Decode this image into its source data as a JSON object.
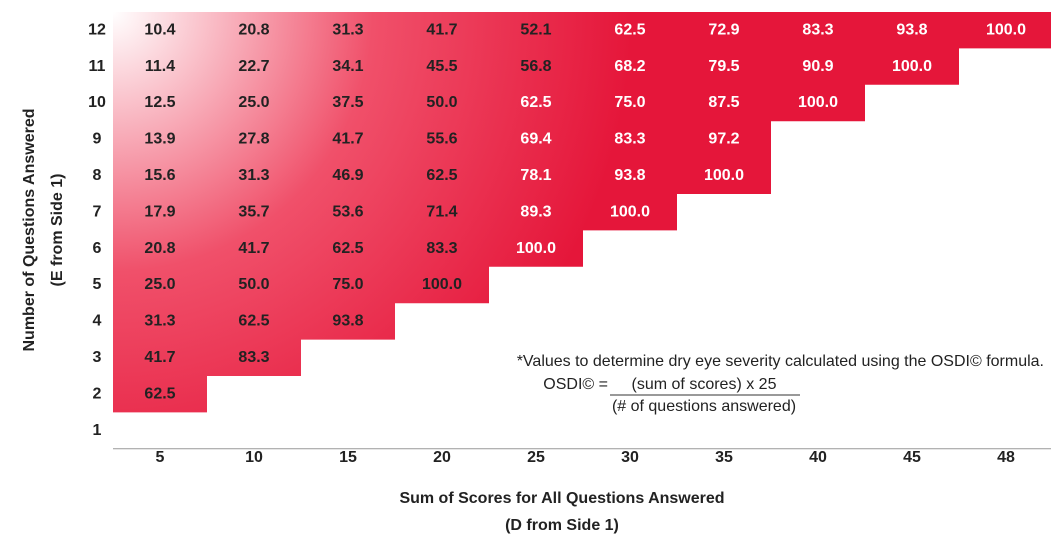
{
  "table": {
    "y_axis_title": [
      "Number of Questions Answered",
      "(E from Side 1)"
    ],
    "x_axis_title": [
      "Sum of Scores for All Questions Answered",
      "(D from Side 1)"
    ],
    "columns": [
      "5",
      "10",
      "15",
      "20",
      "25",
      "30",
      "35",
      "40",
      "45",
      "48"
    ],
    "rows": [
      {
        "label": "12",
        "values": [
          "10.4",
          "20.8",
          "31.3",
          "41.7",
          "52.1",
          "62.5",
          "72.9",
          "83.3",
          "93.8",
          "100.0"
        ]
      },
      {
        "label": "11",
        "values": [
          "11.4",
          "22.7",
          "34.1",
          "45.5",
          "56.8",
          "68.2",
          "79.5",
          "90.9",
          "100.0"
        ]
      },
      {
        "label": "10",
        "values": [
          "12.5",
          "25.0",
          "37.5",
          "50.0",
          "62.5",
          "75.0",
          "87.5",
          "100.0"
        ]
      },
      {
        "label": "9",
        "values": [
          "13.9",
          "27.8",
          "41.7",
          "55.6",
          "69.4",
          "83.3",
          "97.2"
        ]
      },
      {
        "label": "8",
        "values": [
          "15.6",
          "31.3",
          "46.9",
          "62.5",
          "78.1",
          "93.8",
          "100.0"
        ]
      },
      {
        "label": "7",
        "values": [
          "17.9",
          "35.7",
          "53.6",
          "71.4",
          "89.3",
          "100.0"
        ]
      },
      {
        "label": "6",
        "values": [
          "20.8",
          "41.7",
          "62.5",
          "83.3",
          "100.0"
        ]
      },
      {
        "label": "5",
        "values": [
          "25.0",
          "50.0",
          "75.0",
          "100.0"
        ]
      },
      {
        "label": "4",
        "values": [
          "31.3",
          "62.5",
          "93.8"
        ]
      },
      {
        "label": "3",
        "values": [
          "41.7",
          "83.3"
        ]
      },
      {
        "label": "2",
        "values": [
          "62.5"
        ]
      },
      {
        "label": "1",
        "values": []
      }
    ]
  },
  "note": {
    "text": "*Values to determine dry eye severity calculated using the OSDI© formula.",
    "formula_lhs": "OSDI© =",
    "numerator": "(sum of scores) x 25",
    "denominator": "(# of questions answered)"
  }
}
